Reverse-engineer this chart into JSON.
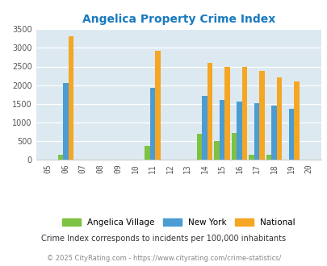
{
  "title": "Angelica Property Crime Index",
  "years": [
    2006,
    2011,
    2014,
    2015,
    2016,
    2017,
    2018,
    2019
  ],
  "angelica": [
    130,
    370,
    700,
    490,
    720,
    140,
    140,
    0
  ],
  "new_york": [
    2050,
    1920,
    1710,
    1600,
    1560,
    1510,
    1460,
    1370
  ],
  "national": [
    3320,
    2920,
    2600,
    2500,
    2490,
    2380,
    2200,
    2100
  ],
  "all_years": [
    2005,
    2006,
    2007,
    2008,
    2009,
    2010,
    2011,
    2012,
    2013,
    2014,
    2015,
    2016,
    2017,
    2018,
    2019,
    2020
  ],
  "color_angelica": "#7dc242",
  "color_newyork": "#4b9cd3",
  "color_national": "#f5a623",
  "title_color": "#1a7abf",
  "background_color": "#dce9f0",
  "ylim": [
    0,
    3500
  ],
  "ylabel_ticks": [
    0,
    500,
    1000,
    1500,
    2000,
    2500,
    3000,
    3500
  ],
  "footnote1": "Crime Index corresponds to incidents per 100,000 inhabitants",
  "footnote2": "© 2025 CityRating.com - https://www.cityrating.com/crime-statistics/",
  "bar_width": 0.3
}
